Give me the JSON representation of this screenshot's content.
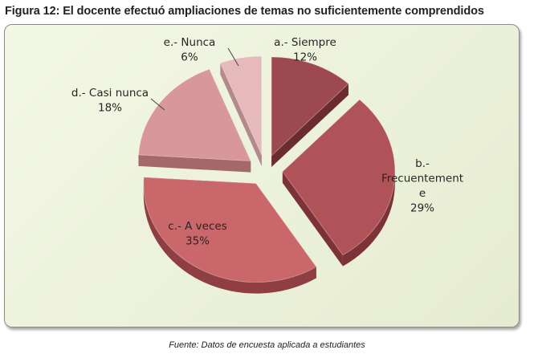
{
  "figure": {
    "title": "Figura 12: El docente efectuó ampliaciones de temas no suficientemente comprendidos",
    "source": "Fuente: Datos de encuesta aplicada a estudiantes"
  },
  "chart_data": {
    "type": "pie",
    "style": "3D exploded pie",
    "categories": [
      "a.- Siempre",
      "b.- Frecuentemente",
      "c.- A veces",
      "d.- Casi nunca",
      "e.- Nunca"
    ],
    "values": [
      12,
      29,
      35,
      18,
      6
    ],
    "unit": "%",
    "data_labels": [
      {
        "lines": [
          "a.- Siempre",
          "12%"
        ]
      },
      {
        "lines": [
          "b.-",
          "Frecuentement",
          "e",
          "29%"
        ]
      },
      {
        "lines": [
          "c.- A veces",
          "35%"
        ]
      },
      {
        "lines": [
          "d.- Casi nunca",
          "18%"
        ]
      },
      {
        "lines": [
          "e.- Nunca",
          "6%"
        ]
      }
    ],
    "colors": {
      "top": [
        "#9c4a50",
        "#b05358",
        "#c9676b",
        "#d8979a",
        "#e6b9bb"
      ],
      "side": [
        "#6a2c31",
        "#7c3237",
        "#8f3e42",
        "#a4676a",
        "#b3898b"
      ]
    },
    "legend": "none"
  }
}
